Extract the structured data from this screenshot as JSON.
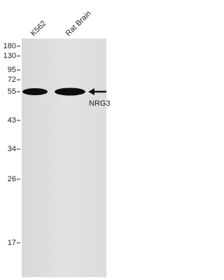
{
  "lanes": [
    "K562",
    "Rat Brain"
  ],
  "markers": [
    180,
    130,
    95,
    72,
    55,
    43,
    34,
    26,
    17
  ],
  "band_label": "NRG3"
}
